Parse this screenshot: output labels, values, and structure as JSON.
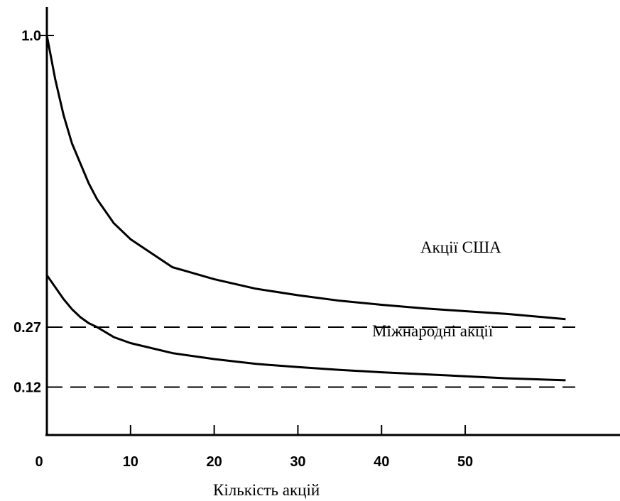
{
  "chart_data": {
    "type": "line",
    "title": "",
    "xlabel": "Кількість акцій",
    "ylabel": "",
    "xlim": [
      0,
      64
    ],
    "ylim": [
      0,
      1.0
    ],
    "x_ticks": [
      0,
      10,
      20,
      30,
      40,
      50
    ],
    "x_tick_labels": [
      "0",
      "10",
      "20",
      "30",
      "40",
      "50"
    ],
    "y_ticks": [
      1.0,
      0.27,
      0.12
    ],
    "y_tick_labels": [
      "1.0",
      "0.27",
      "0.12"
    ],
    "reference_lines": [
      {
        "y": 0.27,
        "style": "dashed"
      },
      {
        "y": 0.12,
        "style": "dashed"
      }
    ],
    "series": [
      {
        "name": "Акції США",
        "x": [
          0,
          1,
          2,
          3,
          4,
          5,
          6,
          8,
          10,
          15,
          20,
          25,
          30,
          35,
          40,
          45,
          50,
          55,
          62
        ],
        "y": [
          1.0,
          0.89,
          0.8,
          0.73,
          0.68,
          0.63,
          0.59,
          0.53,
          0.49,
          0.42,
          0.39,
          0.366,
          0.35,
          0.336,
          0.326,
          0.317,
          0.31,
          0.303,
          0.29
        ]
      },
      {
        "name": "Міжнародні акції",
        "x": [
          0,
          1,
          2,
          3,
          4,
          5,
          6,
          8,
          10,
          15,
          20,
          25,
          30,
          35,
          40,
          45,
          50,
          55,
          62
        ],
        "y": [
          0.4,
          0.37,
          0.34,
          0.315,
          0.295,
          0.28,
          0.27,
          0.245,
          0.23,
          0.205,
          0.19,
          0.178,
          0.17,
          0.163,
          0.157,
          0.152,
          0.147,
          0.142,
          0.137
        ]
      }
    ],
    "legend": "inline labels"
  }
}
